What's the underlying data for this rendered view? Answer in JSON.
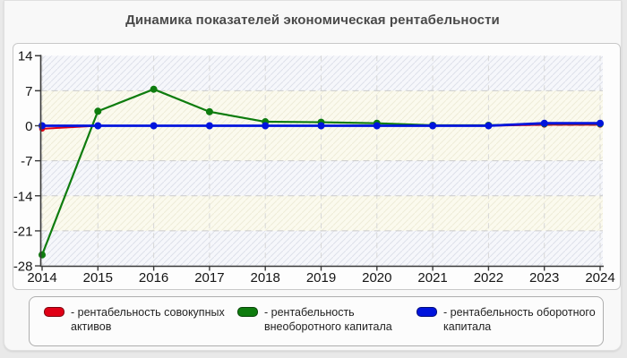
{
  "header": {
    "title": "Динамика показателей экономическая рентабельности"
  },
  "chart_data": {
    "type": "line",
    "title": "Динамика показателей экономическая рентабельности",
    "x": [
      2014,
      2015,
      2016,
      2017,
      2018,
      2019,
      2020,
      2021,
      2022,
      2023,
      2024
    ],
    "series": [
      {
        "name": "рентабельность совокупных активов",
        "color": "#e00016",
        "values": [
          -0.6,
          0,
          0,
          0,
          0,
          0,
          0,
          0,
          0,
          0.2,
          0.2
        ]
      },
      {
        "name": "рентабельность внеоборотного капитала",
        "color": "#0e7c0e",
        "values": [
          -25.8,
          2.9,
          7.3,
          2.8,
          0.8,
          0.7,
          0.5,
          0.1,
          0.1,
          0.4,
          0.4
        ]
      },
      {
        "name": "рентабельность оборотного капитала",
        "color": "#0014dd",
        "values": [
          0,
          0,
          0,
          0,
          0,
          0,
          0,
          0,
          0,
          0.5,
          0.5
        ]
      }
    ],
    "xlabel": "",
    "ylabel": "",
    "ylim": [
      -28,
      14
    ],
    "yticks": [
      14,
      7,
      0,
      -7,
      -14,
      -21,
      -28
    ],
    "grid": true,
    "grid_style": "dashed",
    "legend_position": "bottom"
  },
  "legend": {
    "items": [
      {
        "label": "- рентабельность совокупных активов",
        "color": "#e00016"
      },
      {
        "label": "- рентабельность внеоборотного капитала",
        "color": "#0e7c0e"
      },
      {
        "label": "- рентабельность оборотного капитала",
        "color": "#0014dd"
      }
    ]
  }
}
